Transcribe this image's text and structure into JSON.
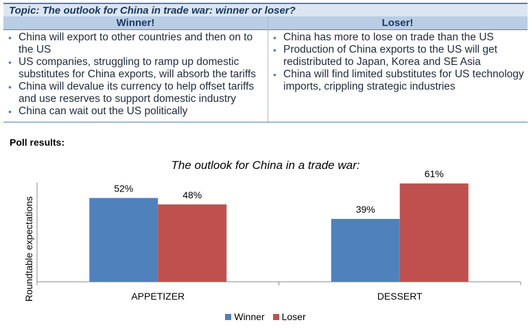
{
  "topic": {
    "title": "Topic: The outlook for China in trade war: winner or loser?"
  },
  "columns": {
    "winner_header": "Winner!",
    "loser_header": "Loser!"
  },
  "winner_points": [
    "China will export to other countries and then on to the US",
    "US companies, struggling to ramp up domestic substitutes for China exports, will absorb the tariffs",
    "China will devalue its currency to help offset tariffs and use reserves to support domestic industry",
    "China can wait out the US politically"
  ],
  "loser_points": [
    "China has more to lose on trade than the US",
    "Production of China exports to the US will get redistributed to Japan, Korea and SE Asia",
    "China will find limited substitutes for US technology imports, crippling strategic industries"
  ],
  "poll": {
    "label": "Poll results:"
  },
  "chart_data": {
    "type": "bar",
    "title": "The outlook for China in a trade war:",
    "ylabel": "Roundtable expectations",
    "categories": [
      "APPETIZER",
      "DESSERT"
    ],
    "series": [
      {
        "name": "Winner",
        "values": [
          52,
          39
        ],
        "labels": [
          "52%",
          "39%"
        ],
        "color": "#4f81bd"
      },
      {
        "name": "Loser",
        "values": [
          48,
          61
        ],
        "labels": [
          "48%",
          "61%"
        ],
        "color": "#c0504d"
      }
    ],
    "ylim": [
      0,
      70
    ],
    "legend_position": "bottom",
    "grid": false
  },
  "colors": {
    "topic_bg": "#dce6f1",
    "header_bg": "#b9cde5",
    "accent": "#4f81bd"
  }
}
